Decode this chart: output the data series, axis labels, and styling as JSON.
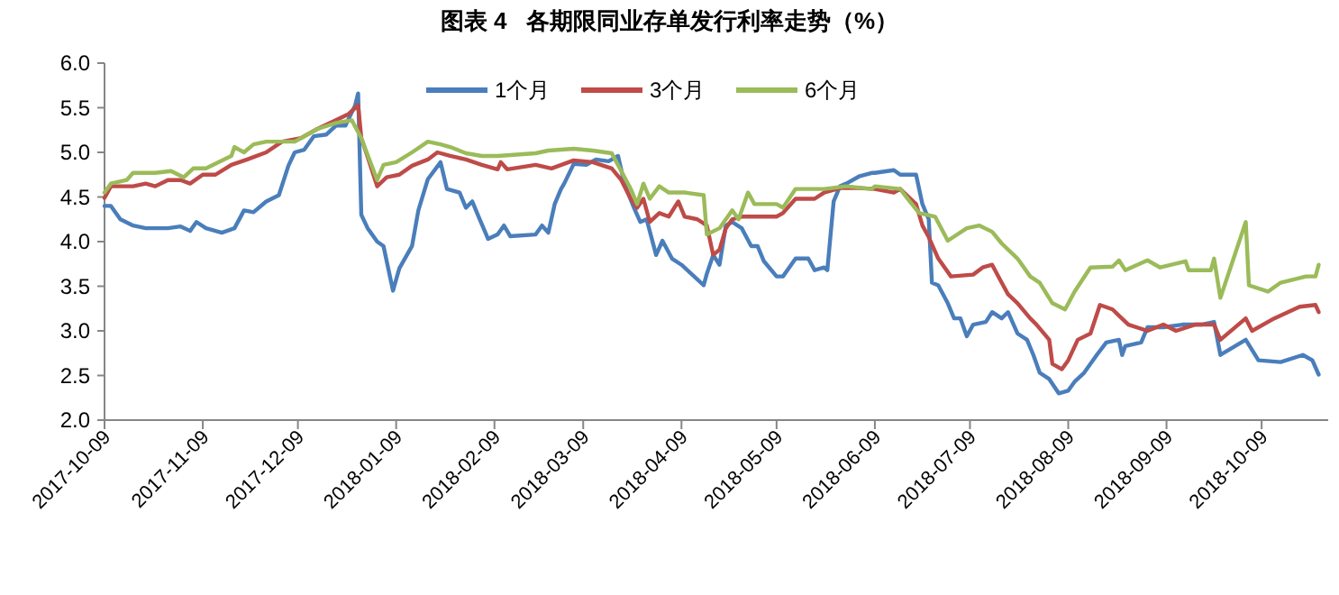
{
  "chart_data": {
    "type": "line",
    "title": "图表 4   各期限同业存单发行利率走势（%）",
    "xlim": [
      "2017-10-09",
      "2018-10-30"
    ],
    "xticks": [
      "2017-10-09",
      "2017-11-09",
      "2017-12-09",
      "2018-01-09",
      "2018-02-09",
      "2018-03-09",
      "2018-04-09",
      "2018-05-09",
      "2018-06-09",
      "2018-07-09",
      "2018-08-09",
      "2018-09-09",
      "2018-10-09"
    ],
    "ylim": [
      2.0,
      6.0
    ],
    "yticks": [
      {
        "value": 2,
        "label": "2.0"
      },
      {
        "value": 2.5,
        "label": "2.5"
      },
      {
        "value": 3,
        "label": "3.0"
      },
      {
        "value": 3.5,
        "label": "3.5"
      },
      {
        "value": 4,
        "label": "4.0"
      },
      {
        "value": 4.5,
        "label": "4.5"
      },
      {
        "value": 5,
        "label": "5.0"
      },
      {
        "value": 5.5,
        "label": "5.5"
      },
      {
        "value": 6,
        "label": "6.0"
      }
    ],
    "grid": false,
    "legend": "top",
    "marker": "none",
    "line_style": "solid",
    "series": [
      {
        "name": "1个月",
        "color": "#4a7ebb",
        "x": [
          "2017-10-09",
          "2017-10-11",
          "2017-10-14",
          "2017-10-18",
          "2017-10-22",
          "2017-10-29",
          "2017-11-02",
          "2017-11-05",
          "2017-11-07",
          "2017-11-10",
          "2017-11-15",
          "2017-11-19",
          "2017-11-22",
          "2017-11-25",
          "2017-11-29",
          "2017-12-03",
          "2017-12-06",
          "2017-12-08",
          "2017-12-11",
          "2017-12-14",
          "2017-12-18",
          "2017-12-21",
          "2017-12-24",
          "2017-12-26",
          "2017-12-27",
          "2017-12-28",
          "2017-12-29",
          "2017-12-31",
          "2018-01-03",
          "2018-01-05",
          "2018-01-08",
          "2018-01-10",
          "2018-01-14",
          "2018-01-16",
          "2018-01-19",
          "2018-01-23",
          "2018-01-25",
          "2018-01-29",
          "2018-01-31",
          "2018-02-02",
          "2018-02-04",
          "2018-02-07",
          "2018-02-10",
          "2018-02-12",
          "2018-02-14",
          "2018-02-22",
          "2018-02-24",
          "2018-02-26",
          "2018-02-28",
          "2018-03-02",
          "2018-03-03",
          "2018-03-06",
          "2018-03-10",
          "2018-03-13",
          "2018-03-17",
          "2018-03-20",
          "2018-03-22",
          "2018-03-25",
          "2018-03-27",
          "2018-03-29",
          "2018-04-01",
          "2018-04-03",
          "2018-04-06",
          "2018-04-09",
          "2018-04-13",
          "2018-04-16",
          "2018-04-17",
          "2018-04-19",
          "2018-04-21",
          "2018-04-23",
          "2018-04-25",
          "2018-04-28",
          "2018-05-01",
          "2018-05-03",
          "2018-05-05",
          "2018-05-09",
          "2018-05-11",
          "2018-05-13",
          "2018-05-15",
          "2018-05-19",
          "2018-05-21",
          "2018-05-24",
          "2018-05-25",
          "2018-05-27",
          "2018-05-29",
          "2018-05-31",
          "2018-06-04",
          "2018-06-08",
          "2018-06-09",
          "2018-06-15",
          "2018-06-17",
          "2018-06-22",
          "2018-06-24",
          "2018-06-26",
          "2018-06-27",
          "2018-06-29",
          "2018-07-02",
          "2018-07-04",
          "2018-07-06",
          "2018-07-08",
          "2018-07-10",
          "2018-07-14",
          "2018-07-16",
          "2018-07-19",
          "2018-07-21",
          "2018-07-24",
          "2018-07-27",
          "2018-07-29",
          "2018-07-31",
          "2018-08-03",
          "2018-08-06",
          "2018-08-09",
          "2018-08-11",
          "2018-08-14",
          "2018-08-18",
          "2018-08-21",
          "2018-08-25",
          "2018-08-26",
          "2018-08-27",
          "2018-09-01",
          "2018-09-03",
          "2018-09-08",
          "2018-09-14",
          "2018-09-20",
          "2018-09-24",
          "2018-09-26",
          "2018-10-04",
          "2018-10-08",
          "2018-10-15",
          "2018-10-22",
          "2018-10-25",
          "2018-10-27"
        ],
        "values": [
          4.4,
          4.4,
          4.25,
          4.18,
          4.15,
          4.15,
          4.17,
          4.12,
          4.22,
          4.15,
          4.1,
          4.15,
          4.35,
          4.33,
          4.45,
          4.52,
          4.85,
          5.0,
          5.03,
          5.18,
          5.2,
          5.3,
          5.3,
          5.45,
          5.52,
          5.66,
          4.3,
          4.15,
          4.0,
          3.95,
          3.45,
          3.7,
          3.95,
          4.35,
          4.7,
          4.89,
          4.59,
          4.55,
          4.38,
          4.45,
          4.28,
          4.03,
          4.08,
          4.18,
          4.06,
          4.08,
          4.18,
          4.1,
          4.42,
          4.59,
          4.65,
          4.87,
          4.86,
          4.92,
          4.9,
          4.96,
          4.65,
          4.38,
          4.22,
          4.25,
          3.85,
          4.01,
          3.81,
          3.74,
          3.61,
          3.51,
          3.64,
          3.85,
          3.74,
          4.18,
          4.22,
          4.15,
          3.95,
          3.95,
          3.78,
          3.61,
          3.61,
          3.71,
          3.81,
          3.81,
          3.68,
          3.71,
          3.68,
          4.45,
          4.62,
          4.65,
          4.73,
          4.77,
          4.77,
          4.8,
          4.75,
          4.75,
          4.42,
          4.25,
          3.54,
          3.51,
          3.31,
          3.14,
          3.14,
          2.94,
          3.07,
          3.1,
          3.21,
          3.14,
          3.21,
          2.97,
          2.9,
          2.73,
          2.53,
          2.46,
          2.3,
          2.33,
          2.43,
          2.53,
          2.73,
          2.87,
          2.9,
          2.73,
          2.83,
          2.87,
          3.04,
          3.04,
          3.07,
          3.07,
          3.1,
          2.73,
          2.9,
          2.67,
          2.65,
          2.73,
          2.67,
          2.51
        ]
      },
      {
        "name": "3个月",
        "color": "#be4b48",
        "x": [
          "2017-10-09",
          "2017-10-11",
          "2017-10-18",
          "2017-10-22",
          "2017-10-25",
          "2017-10-29",
          "2017-11-02",
          "2017-11-05",
          "2017-11-09",
          "2017-11-13",
          "2017-11-18",
          "2017-11-23",
          "2017-11-29",
          "2017-12-04",
          "2017-12-10",
          "2017-12-15",
          "2017-12-21",
          "2017-12-25",
          "2017-12-28",
          "2017-12-29",
          "2017-12-31",
          "2018-01-03",
          "2018-01-06",
          "2018-01-10",
          "2018-01-14",
          "2018-01-19",
          "2018-01-22",
          "2018-01-26",
          "2018-01-31",
          "2018-02-05",
          "2018-02-10",
          "2018-02-11",
          "2018-02-13",
          "2018-02-22",
          "2018-02-27",
          "2018-03-06",
          "2018-03-12",
          "2018-03-18",
          "2018-03-21",
          "2018-03-24",
          "2018-03-26",
          "2018-03-28",
          "2018-03-30",
          "2018-04-02",
          "2018-04-05",
          "2018-04-08",
          "2018-04-10",
          "2018-04-14",
          "2018-04-17",
          "2018-04-19",
          "2018-04-21",
          "2018-04-23",
          "2018-04-25",
          "2018-04-28",
          "2018-05-09",
          "2018-05-11",
          "2018-05-15",
          "2018-05-21",
          "2018-05-24",
          "2018-05-29",
          "2018-06-04",
          "2018-06-09",
          "2018-06-15",
          "2018-06-17",
          "2018-06-22",
          "2018-06-24",
          "2018-06-26",
          "2018-06-29",
          "2018-07-03",
          "2018-07-10",
          "2018-07-13",
          "2018-07-16",
          "2018-07-19",
          "2018-07-21",
          "2018-07-24",
          "2018-07-28",
          "2018-07-30",
          "2018-08-03",
          "2018-08-04",
          "2018-08-07",
          "2018-08-09",
          "2018-08-12",
          "2018-08-16",
          "2018-08-19",
          "2018-08-23",
          "2018-08-25",
          "2018-08-28",
          "2018-09-03",
          "2018-09-08",
          "2018-09-12",
          "2018-09-18",
          "2018-09-24",
          "2018-09-26",
          "2018-10-04",
          "2018-10-06",
          "2018-10-13",
          "2018-10-21",
          "2018-10-26",
          "2018-10-27"
        ],
        "values": [
          4.49,
          4.62,
          4.62,
          4.65,
          4.62,
          4.69,
          4.69,
          4.65,
          4.75,
          4.75,
          4.86,
          4.92,
          5.0,
          5.12,
          5.16,
          5.26,
          5.36,
          5.43,
          5.53,
          5.16,
          4.95,
          4.62,
          4.72,
          4.75,
          4.85,
          4.92,
          5.0,
          4.96,
          4.92,
          4.86,
          4.81,
          4.89,
          4.81,
          4.86,
          4.82,
          4.91,
          4.89,
          4.82,
          4.69,
          4.48,
          4.38,
          4.48,
          4.22,
          4.32,
          4.28,
          4.45,
          4.28,
          4.25,
          4.18,
          3.85,
          3.91,
          4.15,
          4.25,
          4.28,
          4.28,
          4.32,
          4.48,
          4.48,
          4.55,
          4.6,
          4.6,
          4.59,
          4.55,
          4.59,
          4.42,
          4.18,
          4.05,
          3.81,
          3.61,
          3.63,
          3.71,
          3.74,
          3.54,
          3.41,
          3.31,
          3.14,
          3.07,
          2.9,
          2.63,
          2.57,
          2.67,
          2.9,
          2.97,
          3.29,
          3.24,
          3.17,
          3.07,
          3.0,
          3.07,
          3.0,
          3.07,
          3.07,
          2.9,
          3.14,
          3.0,
          3.14,
          3.27,
          3.29,
          3.21
        ]
      },
      {
        "name": "6个月",
        "color": "#9bbb59",
        "x": [
          "2017-10-09",
          "2017-10-11",
          "2017-10-16",
          "2017-10-18",
          "2017-10-25",
          "2017-10-30",
          "2017-11-03",
          "2017-11-06",
          "2017-11-10",
          "2017-11-18",
          "2017-11-19",
          "2017-11-22",
          "2017-11-25",
          "2017-11-29",
          "2017-12-08",
          "2017-12-15",
          "2017-12-21",
          "2017-12-26",
          "2017-12-29",
          "2018-01-03",
          "2018-01-05",
          "2018-01-09",
          "2018-01-14",
          "2018-01-19",
          "2018-01-23",
          "2018-01-26",
          "2018-01-31",
          "2018-02-05",
          "2018-02-10",
          "2018-02-22",
          "2018-02-26",
          "2018-03-06",
          "2018-03-12",
          "2018-03-18",
          "2018-03-21",
          "2018-03-24",
          "2018-03-26",
          "2018-03-28",
          "2018-03-30",
          "2018-04-02",
          "2018-04-05",
          "2018-04-10",
          "2018-04-16",
          "2018-04-17",
          "2018-04-21",
          "2018-04-25",
          "2018-04-27",
          "2018-04-30",
          "2018-05-02",
          "2018-05-09",
          "2018-05-11",
          "2018-05-15",
          "2018-05-24",
          "2018-05-31",
          "2018-06-08",
          "2018-06-09",
          "2018-06-17",
          "2018-06-20",
          "2018-06-23",
          "2018-06-28",
          "2018-07-02",
          "2018-07-08",
          "2018-07-12",
          "2018-07-16",
          "2018-07-19",
          "2018-07-24",
          "2018-07-28",
          "2018-07-31",
          "2018-08-04",
          "2018-08-08",
          "2018-08-11",
          "2018-08-16",
          "2018-08-23",
          "2018-08-25",
          "2018-08-27",
          "2018-09-03",
          "2018-09-07",
          "2018-09-15",
          "2018-09-16",
          "2018-09-23",
          "2018-09-24",
          "2018-09-26",
          "2018-10-04",
          "2018-10-05",
          "2018-10-11",
          "2018-10-15",
          "2018-10-23",
          "2018-10-26",
          "2018-10-27"
        ],
        "values": [
          4.55,
          4.65,
          4.69,
          4.77,
          4.77,
          4.79,
          4.72,
          4.82,
          4.82,
          4.96,
          5.06,
          5.0,
          5.09,
          5.12,
          5.12,
          5.26,
          5.33,
          5.36,
          5.16,
          4.69,
          4.86,
          4.89,
          5.0,
          5.12,
          5.09,
          5.06,
          4.99,
          4.96,
          4.96,
          4.99,
          5.02,
          5.04,
          5.02,
          4.99,
          4.79,
          4.59,
          4.42,
          4.65,
          4.48,
          4.62,
          4.55,
          4.55,
          4.52,
          4.08,
          4.15,
          4.35,
          4.25,
          4.55,
          4.42,
          4.42,
          4.38,
          4.59,
          4.59,
          4.62,
          4.59,
          4.62,
          4.59,
          4.45,
          4.32,
          4.28,
          4.01,
          4.15,
          4.18,
          4.11,
          3.98,
          3.81,
          3.61,
          3.54,
          3.31,
          3.24,
          3.44,
          3.71,
          3.72,
          3.79,
          3.68,
          3.79,
          3.71,
          3.78,
          3.68,
          3.68,
          3.81,
          3.37,
          4.22,
          3.51,
          3.44,
          3.54,
          3.61,
          3.61,
          3.74
        ]
      }
    ]
  }
}
